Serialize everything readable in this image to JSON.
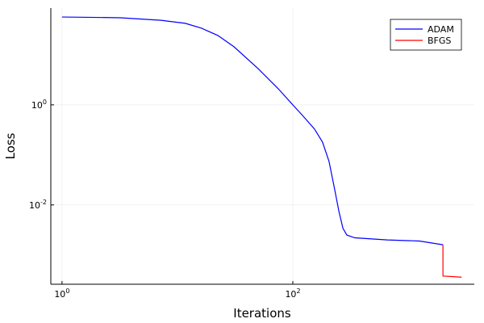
{
  "chart_data": {
    "type": "line",
    "xlabel": "Iterations",
    "ylabel": "Loss",
    "xscale": "log",
    "yscale": "log",
    "grid": true,
    "legend": "top-right",
    "xlim": [
      0.8,
      3740
    ],
    "ylim": [
      0.00026,
      86
    ],
    "xticks": [
      {
        "value": 1,
        "label": "10^0"
      },
      {
        "value": 100,
        "label": "10^2"
      }
    ],
    "yticks": [
      {
        "value": 0.01,
        "label": "10^-2"
      },
      {
        "value": 1,
        "label": "10^0"
      }
    ],
    "series": [
      {
        "name": "ADAM",
        "color": "#0000ff",
        "x": [
          1,
          2,
          3.2,
          7.2,
          11.7,
          16.2,
          22.4,
          30.9,
          50,
          74.8,
          100,
          121,
          154,
          181,
          206,
          231,
          251,
          272,
          294,
          345,
          658,
          1253,
          2000
        ],
        "values": [
          57,
          56,
          55,
          49,
          42.6,
          34,
          24.4,
          14.5,
          5.3,
          2.1,
          1,
          0.62,
          0.33,
          0.18,
          0.074,
          0.02,
          0.0074,
          0.0034,
          0.0025,
          0.0022,
          0.002,
          0.0019,
          0.0016
        ]
      },
      {
        "name": "BFGS",
        "color": "#ff0000",
        "x": [
          2000,
          2001,
          2900
        ],
        "values": [
          0.0016,
          0.00038,
          0.00036
        ]
      }
    ]
  }
}
